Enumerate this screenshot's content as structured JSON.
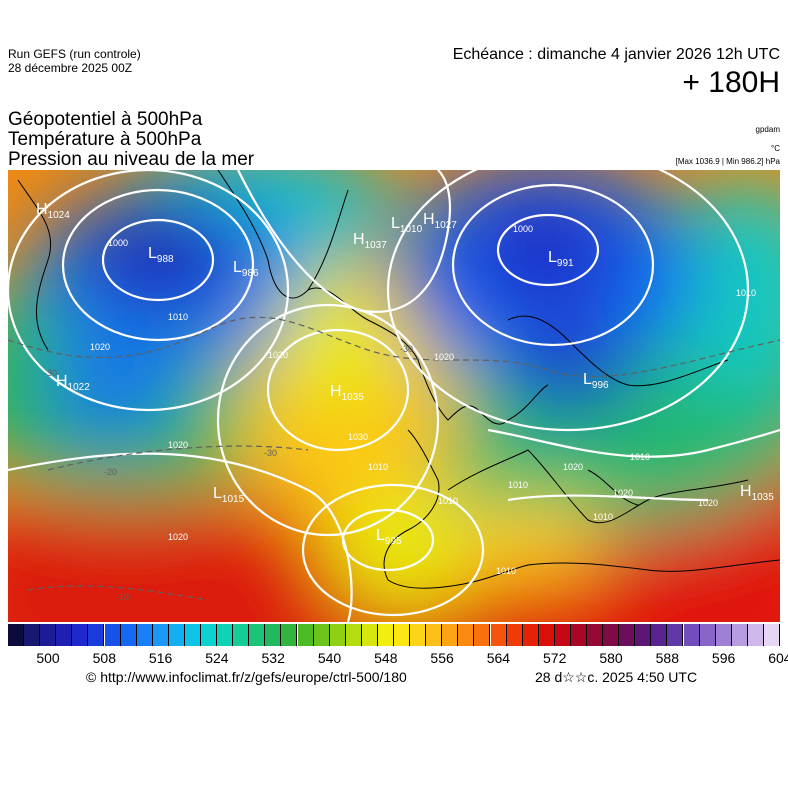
{
  "header": {
    "run_line1": "Run GEFS (run controle)",
    "run_line2": "28 décembre 2025 00Z",
    "echeance": "Echéance : dimanche 4 janvier 2026 12h UTC",
    "hour": "+ 180H"
  },
  "titles": [
    "Géopotentiel à 500hPa",
    "Température à 500hPa",
    "Pression au niveau de la mer"
  ],
  "units": {
    "gpdam": "gpdam",
    "celsius": "°C",
    "pressure": "[Max 1036.9 | Min 986.2] hPa"
  },
  "map": {
    "pressure_centers": [
      {
        "type": "H",
        "value": "1024"
      },
      {
        "type": "L",
        "value": "988"
      },
      {
        "type": "L",
        "value": "986"
      },
      {
        "type": "H",
        "value": "1037"
      },
      {
        "type": "L",
        "value": "1010"
      },
      {
        "type": "H",
        "value": "1027"
      },
      {
        "type": "L",
        "value": "991"
      },
      {
        "type": "H",
        "value": "1022"
      },
      {
        "type": "H",
        "value": "1035"
      },
      {
        "type": "L",
        "value": "996"
      },
      {
        "type": "L",
        "value": "1015"
      },
      {
        "type": "L",
        "value": "995"
      },
      {
        "type": "H",
        "value": "1035"
      }
    ],
    "isobar_labels": [
      "1000",
      "1000",
      "1010",
      "1010",
      "1020",
      "1020",
      "1020",
      "1030",
      "1010",
      "1010",
      "1020",
      "1010",
      "1020",
      "1010",
      "1020",
      "1010",
      "1010",
      "1020",
      "1020"
    ],
    "temp_labels": [
      "-30",
      "-30",
      "-30",
      "-20",
      "-10"
    ]
  },
  "colorscale": {
    "colors": [
      "#0b0b3c",
      "#181870",
      "#1c1c96",
      "#1f1fb4",
      "#1e28cc",
      "#1a3cdc",
      "#1652ea",
      "#1468f2",
      "#1880f6",
      "#1a98f6",
      "#12b0f2",
      "#0cc4e8",
      "#0cd2d2",
      "#0cd4b4",
      "#14cc96",
      "#1cc47a",
      "#22b85e",
      "#32b43e",
      "#4cbc26",
      "#6cc41a",
      "#90d014",
      "#b4dc10",
      "#d6e60e",
      "#f2ee10",
      "#fce614",
      "#fcd418",
      "#fcbe18",
      "#fca414",
      "#fc8a10",
      "#fa700c",
      "#f6540a",
      "#f03a08",
      "#e62206",
      "#d81008",
      "#c40816",
      "#ac0626",
      "#940834",
      "#7e0a46",
      "#6c0e5c",
      "#5e1676",
      "#582490",
      "#6038a8",
      "#724ebc",
      "#8866c8",
      "#a080d4",
      "#b89ce0",
      "#d0b8ea",
      "#e6d6f4"
    ],
    "ticks": [
      "500",
      "508",
      "516",
      "524",
      "532",
      "540",
      "548",
      "556",
      "564",
      "572",
      "580",
      "588",
      "596",
      "604"
    ]
  },
  "footer": {
    "url": "© http://www.infoclimat.fr/z/gefs/europe/ctrl-500/180",
    "date": "28 d☆☆c. 2025  4:50 UTC"
  }
}
